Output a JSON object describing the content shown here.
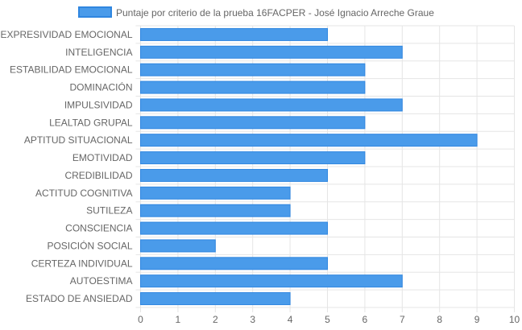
{
  "chart_data": {
    "type": "bar",
    "orientation": "horizontal",
    "categories": [
      "EXPRESIVIDAD EMOCIONAL",
      "INTELIGENCIA",
      "ESTABILIDAD EMOCIONAL",
      "DOMINACIÓN",
      "IMPULSIVIDAD",
      "LEALTAD GRUPAL",
      "APTITUD SITUACIONAL",
      "EMOTIVIDAD",
      "CREDIBILIDAD",
      "ACTITUD COGNITIVA",
      "SUTILEZA",
      "CONSCIENCIA",
      "POSICIÓN SOCIAL",
      "CERTEZA INDIVIDUAL",
      "AUTOESTIMA",
      "ESTADO DE ANSIEDAD"
    ],
    "series": [
      {
        "name": "Puntaje por criterio de la prueba 16FACPER - José Ignacio Arreche Graue",
        "values": [
          5,
          7,
          6,
          6,
          7,
          6,
          9,
          6,
          5,
          4,
          4,
          5,
          2,
          5,
          7,
          4
        ]
      }
    ],
    "xlim": [
      0,
      10
    ],
    "x_ticks": [
      "0",
      "1",
      "2",
      "3",
      "4",
      "5",
      "6",
      "7",
      "8",
      "9",
      "10"
    ],
    "grid": true,
    "legend_position": "top",
    "colors": {
      "bar_fill": "#4a9bea",
      "bar_border": "#2f86e0",
      "grid": "#e5e5e5",
      "text": "#666666"
    }
  }
}
